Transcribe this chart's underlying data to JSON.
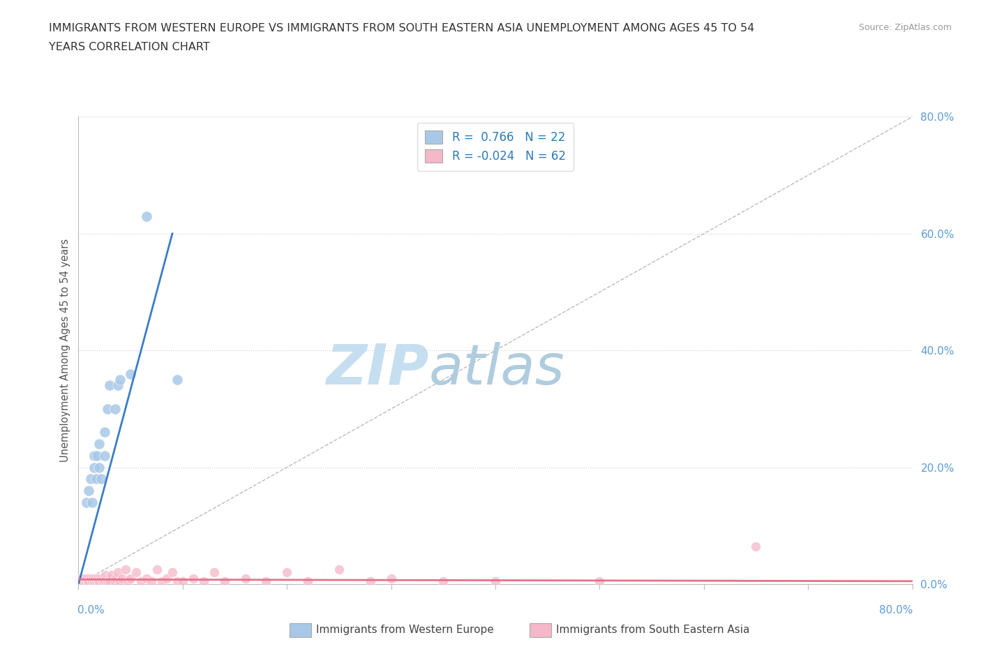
{
  "title_line1": "IMMIGRANTS FROM WESTERN EUROPE VS IMMIGRANTS FROM SOUTH EASTERN ASIA UNEMPLOYMENT AMONG AGES 45 TO 54",
  "title_line2": "YEARS CORRELATION CHART",
  "source_text": "Source: ZipAtlas.com",
  "ylabel": "Unemployment Among Ages 45 to 54 years",
  "xlim": [
    0,
    0.8
  ],
  "ylim": [
    0,
    0.8
  ],
  "yticks": [
    0.0,
    0.2,
    0.4,
    0.6,
    0.8
  ],
  "ytick_labels": [
    "0.0%",
    "20.0%",
    "40.0%",
    "60.0%",
    "80.0%"
  ],
  "blue_R": 0.766,
  "blue_N": 22,
  "pink_R": -0.024,
  "pink_N": 62,
  "blue_color": "#a8c8e8",
  "pink_color": "#f4b8c8",
  "blue_line_color": "#3a7dc9",
  "pink_line_color": "#e8708a",
  "title_color": "#333333",
  "source_color": "#999999",
  "watermark_zip": "ZIP",
  "watermark_atlas": "atlas",
  "watermark_color_zip": "#c8dff0",
  "watermark_color_atlas": "#b8d0e8",
  "legend_blue_label": "Immigrants from Western Europe",
  "legend_pink_label": "Immigrants from South Eastern Asia",
  "blue_scatter": [
    [
      0.005,
      0.005
    ],
    [
      0.008,
      0.14
    ],
    [
      0.01,
      0.16
    ],
    [
      0.012,
      0.18
    ],
    [
      0.013,
      0.14
    ],
    [
      0.015,
      0.22
    ],
    [
      0.015,
      0.2
    ],
    [
      0.017,
      0.18
    ],
    [
      0.018,
      0.22
    ],
    [
      0.02,
      0.24
    ],
    [
      0.02,
      0.2
    ],
    [
      0.022,
      0.18
    ],
    [
      0.025,
      0.26
    ],
    [
      0.025,
      0.22
    ],
    [
      0.028,
      0.3
    ],
    [
      0.03,
      0.34
    ],
    [
      0.035,
      0.3
    ],
    [
      0.038,
      0.34
    ],
    [
      0.04,
      0.35
    ],
    [
      0.05,
      0.36
    ],
    [
      0.065,
      0.63
    ],
    [
      0.095,
      0.35
    ]
  ],
  "pink_scatter": [
    [
      0.002,
      0.005
    ],
    [
      0.003,
      0.01
    ],
    [
      0.005,
      0.005
    ],
    [
      0.006,
      0.01
    ],
    [
      0.007,
      0.005
    ],
    [
      0.008,
      0.01
    ],
    [
      0.009,
      0.005
    ],
    [
      0.01,
      0.01
    ],
    [
      0.01,
      0.005
    ],
    [
      0.012,
      0.01
    ],
    [
      0.013,
      0.005
    ],
    [
      0.014,
      0.01
    ],
    [
      0.015,
      0.005
    ],
    [
      0.016,
      0.01
    ],
    [
      0.017,
      0.005
    ],
    [
      0.018,
      0.01
    ],
    [
      0.019,
      0.005
    ],
    [
      0.02,
      0.01
    ],
    [
      0.02,
      0.005
    ],
    [
      0.022,
      0.01
    ],
    [
      0.023,
      0.005
    ],
    [
      0.024,
      0.01
    ],
    [
      0.025,
      0.005
    ],
    [
      0.026,
      0.015
    ],
    [
      0.027,
      0.01
    ],
    [
      0.028,
      0.005
    ],
    [
      0.03,
      0.01
    ],
    [
      0.03,
      0.005
    ],
    [
      0.032,
      0.015
    ],
    [
      0.035,
      0.005
    ],
    [
      0.036,
      0.01
    ],
    [
      0.038,
      0.02
    ],
    [
      0.04,
      0.005
    ],
    [
      0.042,
      0.01
    ],
    [
      0.045,
      0.025
    ],
    [
      0.048,
      0.005
    ],
    [
      0.05,
      0.01
    ],
    [
      0.055,
      0.02
    ],
    [
      0.06,
      0.005
    ],
    [
      0.065,
      0.01
    ],
    [
      0.07,
      0.005
    ],
    [
      0.075,
      0.025
    ],
    [
      0.08,
      0.005
    ],
    [
      0.085,
      0.01
    ],
    [
      0.09,
      0.02
    ],
    [
      0.095,
      0.005
    ],
    [
      0.1,
      0.005
    ],
    [
      0.11,
      0.01
    ],
    [
      0.12,
      0.005
    ],
    [
      0.13,
      0.02
    ],
    [
      0.14,
      0.005
    ],
    [
      0.16,
      0.01
    ],
    [
      0.18,
      0.005
    ],
    [
      0.2,
      0.02
    ],
    [
      0.22,
      0.005
    ],
    [
      0.25,
      0.025
    ],
    [
      0.28,
      0.005
    ],
    [
      0.3,
      0.01
    ],
    [
      0.35,
      0.005
    ],
    [
      0.4,
      0.005
    ],
    [
      0.5,
      0.005
    ],
    [
      0.65,
      0.065
    ]
  ],
  "blue_line": [
    [
      0.0,
      0.0
    ],
    [
      0.09,
      0.6
    ]
  ],
  "pink_line": [
    [
      0.0,
      0.008
    ],
    [
      0.8,
      0.005
    ]
  ]
}
